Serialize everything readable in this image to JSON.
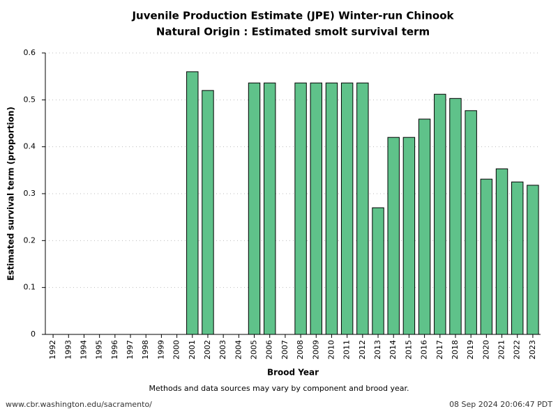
{
  "chart_data": {
    "type": "bar",
    "title": "Juvenile Production Estimate (JPE) Winter-run Chinook",
    "subtitle": "Natural Origin : Estimated smolt survival term",
    "x_label": "Brood Year",
    "y_label": "Estimated survival term (proportion)",
    "note": "Methods and data sources may vary by component and brood year.",
    "source": "www.cbr.washington.edu/sacramento/",
    "timestamp": "08 Sep 2024 20:06:47 PDT",
    "categories": [
      "1992",
      "1993",
      "1994",
      "1995",
      "1996",
      "1997",
      "1998",
      "1999",
      "2000",
      "2001",
      "2002",
      "2003",
      "2004",
      "2005",
      "2006",
      "2007",
      "2008",
      "2009",
      "2010",
      "2011",
      "2012",
      "2013",
      "2014",
      "2015",
      "2016",
      "2017",
      "2018",
      "2019",
      "2020",
      "2021",
      "2022",
      "2023"
    ],
    "values": [
      null,
      null,
      null,
      null,
      null,
      null,
      null,
      null,
      null,
      0.56,
      0.52,
      null,
      null,
      0.536,
      0.536,
      null,
      0.536,
      0.536,
      0.536,
      0.536,
      0.536,
      0.27,
      0.42,
      0.42,
      0.459,
      0.512,
      0.503,
      0.477,
      0.331,
      0.353,
      0.325,
      0.318
    ],
    "color": "#5fc28a",
    "ylim": [
      0,
      0.6
    ],
    "yticks": [
      0,
      0.1,
      0.2,
      0.3,
      0.4,
      0.5,
      0.6
    ],
    "grid": true
  }
}
